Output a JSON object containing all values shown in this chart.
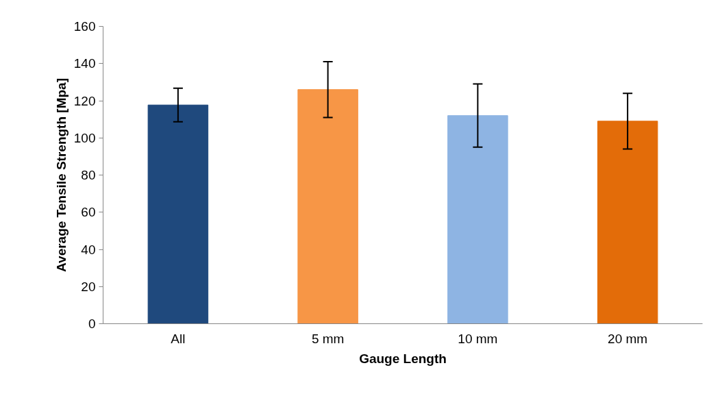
{
  "chart_data": {
    "type": "bar",
    "xlabel": "Gauge Length",
    "ylabel": "Average Tensile Strength [Mpa]",
    "categories": [
      "All",
      "5 mm",
      "10 mm",
      "20 mm"
    ],
    "values": [
      117.7,
      126,
      112,
      109
    ],
    "colors": [
      "#1f497d",
      "#f79646",
      "#8eb4e3",
      "#e36c09"
    ],
    "errors": [
      9,
      15,
      17,
      15
    ],
    "ylim": [
      0,
      160
    ],
    "yticks": [
      0,
      20,
      40,
      60,
      80,
      100,
      120,
      140,
      160
    ],
    "grid": false
  }
}
